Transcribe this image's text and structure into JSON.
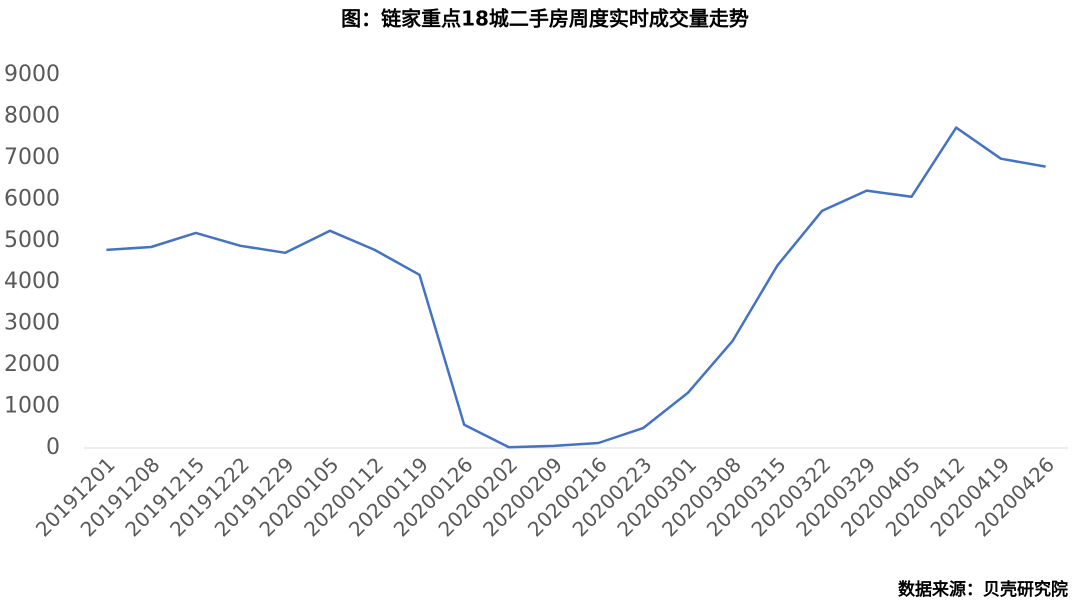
{
  "chart_data": {
    "type": "line",
    "title": "图：链家重点18城二手房周度实时成交量走势",
    "source": "数据来源：贝壳研究院",
    "categories": [
      "20191201",
      "20191208",
      "20191215",
      "20191222",
      "20191229",
      "20200105",
      "20200112",
      "20200119",
      "20200126",
      "20200202",
      "20200209",
      "20200216",
      "20200223",
      "20200301",
      "20200308",
      "20200315",
      "20200322",
      "20200329",
      "20200405",
      "20200412",
      "20200419",
      "20200426"
    ],
    "values": [
      4780,
      4850,
      5190,
      4880,
      4710,
      5240,
      4780,
      4180,
      560,
      20,
      50,
      120,
      480,
      1330,
      2580,
      4400,
      5720,
      6210,
      6060,
      7730,
      6980,
      6790
    ],
    "color": "#4472c4",
    "ylim": [
      0,
      9000
    ],
    "yticks": [
      0,
      1000,
      2000,
      3000,
      4000,
      5000,
      6000,
      7000,
      8000,
      9000
    ],
    "grid": false
  }
}
